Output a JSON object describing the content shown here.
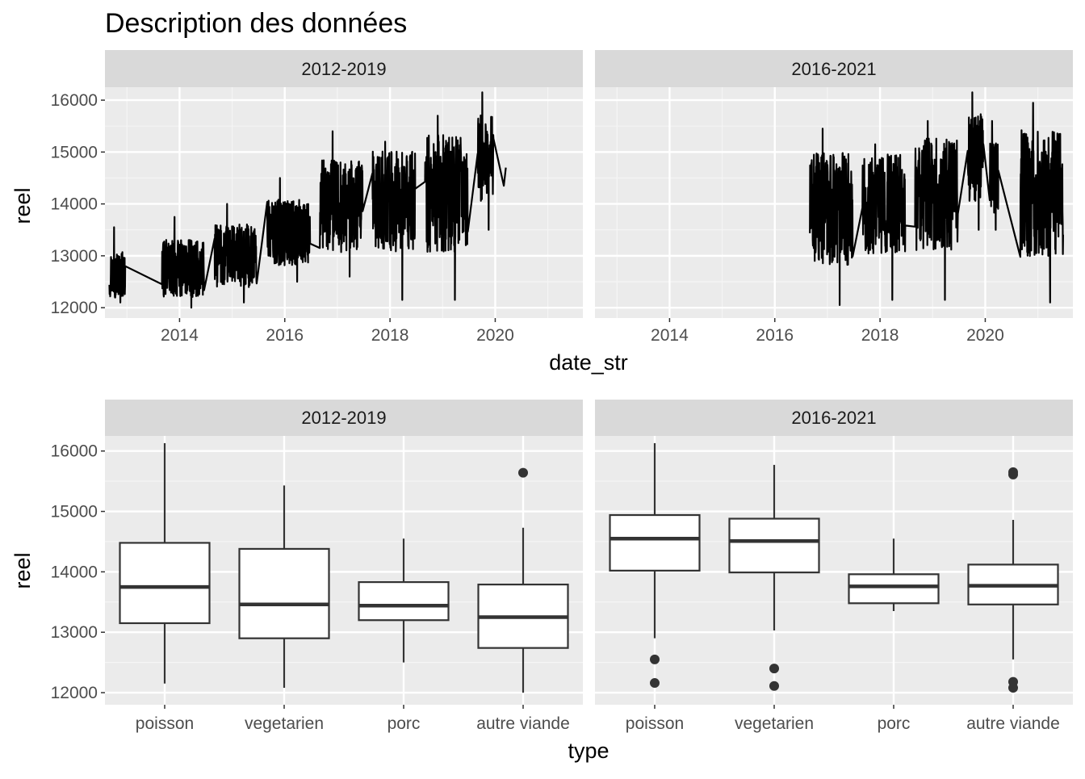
{
  "title": "Description des données",
  "colors": {
    "panel_bg": "#ebebeb",
    "strip_bg": "#d9d9d9",
    "grid_major": "#ffffff",
    "grid_minor": "#f5f5f5",
    "line": "#000000",
    "box": "#333333",
    "outlier": "#333333"
  },
  "chart_data": [
    {
      "type": "line",
      "xlabel": "date_str",
      "ylabel": "reel",
      "facets": [
        "2012-2019",
        "2016-2021"
      ],
      "xlim": [
        "2012-08-01",
        "2021-09-01"
      ],
      "ylim": [
        11800,
        16250
      ],
      "xticks": [
        "2014",
        "2016",
        "2018",
        "2020"
      ],
      "yticks": [
        12000,
        13000,
        14000,
        15000,
        16000
      ],
      "grid": true,
      "series": [
        {
          "facet": "2012-2019",
          "segments": [
            {
              "start": "2012-09-01",
              "end": "2012-12-20",
              "low": 12100,
              "high": 13550,
              "center": 12650
            },
            {
              "start": "2013-09-01",
              "end": "2014-06-20",
              "low": 12000,
              "high": 13750,
              "center": 12750
            },
            {
              "start": "2014-09-01",
              "end": "2015-06-20",
              "low": 12100,
              "high": 14000,
              "center": 13000
            },
            {
              "start": "2015-09-01",
              "end": "2016-06-25",
              "low": 12500,
              "high": 14500,
              "center": 13450
            },
            {
              "start": "2016-09-01",
              "end": "2017-06-25",
              "low": 12600,
              "high": 15400,
              "center": 13950
            },
            {
              "start": "2017-09-01",
              "end": "2018-06-25",
              "low": 12150,
              "high": 15200,
              "center": 14050
            },
            {
              "start": "2018-09-01",
              "end": "2019-06-25",
              "low": 12150,
              "high": 15700,
              "center": 14200
            },
            {
              "start": "2019-09-01",
              "end": "2019-12-20",
              "low": 13500,
              "high": 16150,
              "center": 14900
            }
          ],
          "extra_points": [
            {
              "x": "2020-03-01",
              "v": 14350
            },
            {
              "x": "2020-03-15",
              "v": 14700
            }
          ]
        },
        {
          "facet": "2016-2021",
          "segments": [
            {
              "start": "2016-09-01",
              "end": "2017-06-25",
              "low": 12050,
              "high": 15450,
              "center": 13900
            },
            {
              "start": "2017-09-01",
              "end": "2018-06-25",
              "low": 12150,
              "high": 15150,
              "center": 14000
            },
            {
              "start": "2018-09-01",
              "end": "2019-06-25",
              "low": 12150,
              "high": 15600,
              "center": 14200
            },
            {
              "start": "2019-09-01",
              "end": "2019-12-20",
              "low": 13500,
              "high": 16150,
              "center": 14900
            },
            {
              "start": "2020-02-01",
              "end": "2020-04-01",
              "low": 13500,
              "high": 15600,
              "center": 14500
            },
            {
              "start": "2020-09-01",
              "end": "2021-06-25",
              "low": 12100,
              "high": 15950,
              "center": 14200
            }
          ],
          "extra_points": []
        }
      ]
    },
    {
      "type": "box",
      "xlabel": "type",
      "ylabel": "reel",
      "facets": [
        "2012-2019",
        "2016-2021"
      ],
      "categories": [
        "poisson",
        "vegetarien",
        "porc",
        "autre viande"
      ],
      "ylim": [
        11800,
        16250
      ],
      "yticks": [
        12000,
        13000,
        14000,
        15000,
        16000
      ],
      "grid": true,
      "series": [
        {
          "facet": "2012-2019",
          "boxes": [
            {
              "category": "poisson",
              "min": 12150,
              "q1": 13150,
              "median": 13750,
              "q3": 14480,
              "max": 16130,
              "outliers": []
            },
            {
              "category": "vegetarien",
              "min": 12080,
              "q1": 12900,
              "median": 13460,
              "q3": 14380,
              "max": 15430,
              "outliers": []
            },
            {
              "category": "porc",
              "min": 12500,
              "q1": 13200,
              "median": 13440,
              "q3": 13830,
              "max": 14550,
              "outliers": []
            },
            {
              "category": "autre viande",
              "min": 12000,
              "q1": 12740,
              "median": 13250,
              "q3": 13790,
              "max": 14730,
              "outliers": [
                15640
              ]
            }
          ]
        },
        {
          "facet": "2016-2021",
          "boxes": [
            {
              "category": "poisson",
              "min": 12900,
              "q1": 14020,
              "median": 14550,
              "q3": 14940,
              "max": 16130,
              "outliers": [
                12550,
                12160
              ]
            },
            {
              "category": "vegetarien",
              "min": 13030,
              "q1": 13990,
              "median": 14510,
              "q3": 14880,
              "max": 15770,
              "outliers": [
                12400,
                12110
              ]
            },
            {
              "category": "porc",
              "min": 13350,
              "q1": 13480,
              "median": 13760,
              "q3": 13960,
              "max": 14550,
              "outliers": []
            },
            {
              "category": "autre viande",
              "min": 12550,
              "q1": 13460,
              "median": 13770,
              "q3": 14120,
              "max": 14860,
              "outliers": [
                15650,
                15610,
                12180,
                12080
              ]
            }
          ]
        }
      ]
    }
  ]
}
